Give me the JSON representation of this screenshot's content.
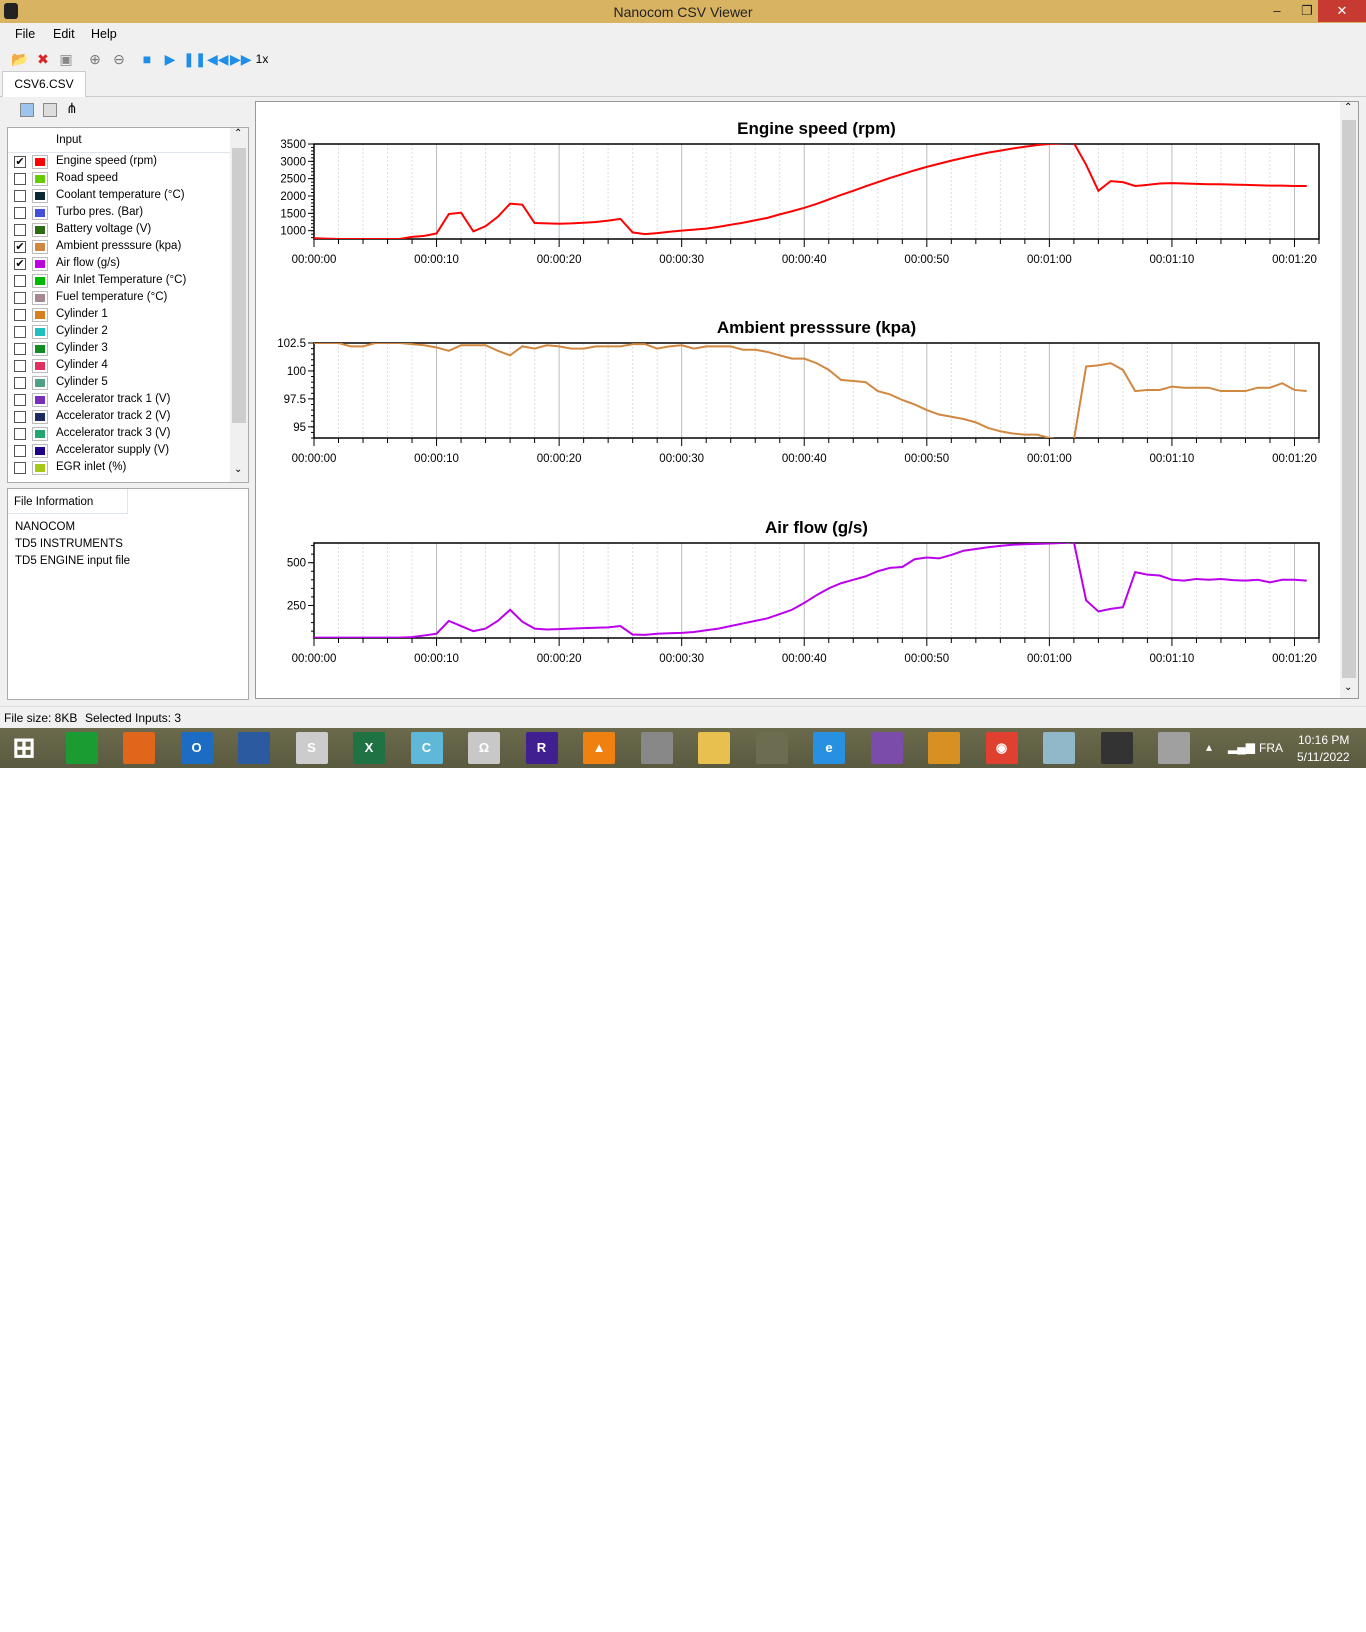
{
  "window": {
    "title": "Nanocom CSV Viewer",
    "minimize": "–",
    "maximize": "❐",
    "close": "✕"
  },
  "menu": [
    "File",
    "Edit",
    "Help"
  ],
  "toolbar": {
    "icons": [
      "open-folder-icon",
      "close-file-icon",
      "close-all-icon",
      "zoom-in-icon",
      "zoom-out-icon",
      "stop-icon",
      "play-icon",
      "pause-icon",
      "rewind-icon",
      "fast-forward-icon"
    ],
    "speed": "1x"
  },
  "tab": "CSV6.CSV",
  "inputs": {
    "header": "Input",
    "items": [
      {
        "label": "Engine speed (rpm)",
        "color": "#ff0000",
        "checked": true
      },
      {
        "label": "Road speed",
        "color": "#66cc00",
        "checked": false
      },
      {
        "label": "Coolant temperature (°C)",
        "color": "#0a2a33",
        "checked": false
      },
      {
        "label": "Turbo pres. (Bar)",
        "color": "#4050d8",
        "checked": false
      },
      {
        "label": "Battery voltage (V)",
        "color": "#2c6a14",
        "checked": false
      },
      {
        "label": "Ambient presssure (kpa)",
        "color": "#d08840",
        "checked": true
      },
      {
        "label": "Air flow (g/s)",
        "color": "#bb00dd",
        "checked": true
      },
      {
        "label": "Air Inlet Temperature (°C)",
        "color": "#00bb00",
        "checked": false
      },
      {
        "label": "Fuel temperature (°C)",
        "color": "#a88890",
        "checked": false
      },
      {
        "label": "Cylinder 1",
        "color": "#d88020",
        "checked": false
      },
      {
        "label": "Cylinder 2",
        "color": "#20c0c0",
        "checked": false
      },
      {
        "label": "Cylinder 3",
        "color": "#108c20",
        "checked": false
      },
      {
        "label": "Cylinder 4",
        "color": "#e03060",
        "checked": false
      },
      {
        "label": "Cylinder 5",
        "color": "#50a088",
        "checked": false
      },
      {
        "label": "Accelerator track 1 (V)",
        "color": "#7830b8",
        "checked": false
      },
      {
        "label": "Accelerator track 2 (V)",
        "color": "#1c2c60",
        "checked": false
      },
      {
        "label": "Accelerator track 3 (V)",
        "color": "#20a870",
        "checked": false
      },
      {
        "label": "Accelerator supply (V)",
        "color": "#200088",
        "checked": false
      },
      {
        "label": "EGR inlet (%)",
        "color": "#a8c818",
        "checked": false
      }
    ]
  },
  "file_info": {
    "header": "File Information",
    "lines": [
      "NANOCOM",
      "TD5 INSTRUMENTS",
      "TD5 ENGINE input file"
    ]
  },
  "status": {
    "file_size": "File size: 8KB",
    "selected": "Selected Inputs: 3"
  },
  "taskbar": {
    "apps": [
      "windows-start",
      "store",
      "firefox",
      "outlook",
      "lenovo",
      "steps",
      "excel",
      "ccleaner",
      "omega",
      "rew",
      "vlc",
      "photo",
      "file-explorer",
      "compass",
      "internet-explorer",
      "tor",
      "app-orange",
      "chrome",
      "notepad",
      "nanocom",
      "paint"
    ],
    "language": "FRA",
    "time": "10:16 PM",
    "date": "5/11/2022"
  },
  "chart_data": [
    {
      "type": "line",
      "title": "Engine speed (rpm)",
      "color": "#ff0000",
      "x_unit": "seconds",
      "xlim": [
        0,
        82
      ],
      "xticks": [
        "00:00:00",
        "00:00:10",
        "00:00:20",
        "00:00:30",
        "00:00:40",
        "00:00:50",
        "00:01:00",
        "00:01:10",
        "00:01:20"
      ],
      "ylim": [
        760,
        3500
      ],
      "yticks": [
        1000,
        1500,
        2000,
        2500,
        3000,
        3500
      ],
      "values": [
        780,
        770,
        760,
        760,
        760,
        760,
        760,
        760,
        820,
        850,
        920,
        1480,
        1520,
        980,
        1130,
        1400,
        1780,
        1750,
        1220,
        1210,
        1200,
        1210,
        1230,
        1250,
        1290,
        1340,
        950,
        900,
        930,
        970,
        1000,
        1030,
        1060,
        1110,
        1170,
        1230,
        1300,
        1370,
        1470,
        1560,
        1660,
        1770,
        1900,
        2030,
        2150,
        2280,
        2400,
        2520,
        2630,
        2740,
        2840,
        2930,
        3020,
        3100,
        3180,
        3250,
        3310,
        3370,
        3420,
        3470,
        3500,
        3520,
        3530,
        2900,
        2150,
        2430,
        2400,
        2290,
        2320,
        2360,
        2370,
        2360,
        2350,
        2340,
        2340,
        2330,
        2320,
        2310,
        2300,
        2300,
        2290,
        2290
      ]
    },
    {
      "type": "line",
      "title": "Ambient presssure (kpa)",
      "color": "#d08840",
      "x_unit": "seconds",
      "xlim": [
        0,
        82
      ],
      "xticks": [
        "00:00:00",
        "00:00:10",
        "00:00:20",
        "00:00:30",
        "00:00:40",
        "00:00:50",
        "00:01:00",
        "00:01:10",
        "00:01:20"
      ],
      "ylim": [
        94,
        102.5
      ],
      "yticks": [
        95,
        97.5,
        100,
        102.5
      ],
      "values": [
        102.5,
        102.5,
        102.5,
        102.2,
        102.2,
        102.5,
        102.5,
        102.5,
        102.4,
        102.3,
        102.1,
        101.8,
        102.3,
        102.3,
        102.3,
        101.8,
        101.4,
        102.2,
        102.0,
        102.3,
        102.2,
        102.0,
        102.0,
        102.2,
        102.2,
        102.2,
        102.4,
        102.4,
        102.0,
        102.2,
        102.3,
        102.0,
        102.2,
        102.2,
        102.2,
        101.9,
        101.9,
        101.7,
        101.4,
        101.1,
        101.1,
        100.7,
        100.1,
        99.2,
        99.1,
        99.0,
        98.2,
        97.9,
        97.4,
        97.0,
        96.5,
        96.1,
        95.9,
        95.7,
        95.4,
        94.9,
        94.6,
        94.4,
        94.3,
        94.3,
        94.0,
        93.8,
        93.8,
        100.4,
        100.5,
        100.7,
        100.1,
        98.2,
        98.3,
        98.3,
        98.6,
        98.5,
        98.5,
        98.5,
        98.2,
        98.2,
        98.2,
        98.5,
        98.5,
        98.9,
        98.3,
        98.2
      ]
    },
    {
      "type": "line",
      "title": "Air flow (g/s)",
      "color": "#bb00ee",
      "x_unit": "seconds",
      "xlim": [
        0,
        82
      ],
      "xticks": [
        "00:00:00",
        "00:00:10",
        "00:00:20",
        "00:00:30",
        "00:00:40",
        "00:00:50",
        "00:01:00",
        "00:01:10",
        "00:01:20"
      ],
      "ylim": [
        60,
        615
      ],
      "yticks": [
        250,
        500
      ],
      "values": [
        62,
        62,
        62,
        62,
        62,
        62,
        62,
        62,
        65,
        75,
        85,
        160,
        130,
        100,
        115,
        160,
        225,
        155,
        115,
        110,
        112,
        115,
        118,
        120,
        122,
        130,
        80,
        78,
        85,
        88,
        90,
        95,
        105,
        115,
        130,
        145,
        160,
        175,
        200,
        225,
        265,
        310,
        350,
        380,
        400,
        420,
        450,
        470,
        475,
        520,
        530,
        525,
        545,
        570,
        580,
        590,
        598,
        605,
        608,
        610,
        612,
        615,
        620,
        280,
        215,
        230,
        240,
        445,
        430,
        425,
        400,
        395,
        405,
        400,
        405,
        398,
        395,
        400,
        385,
        400,
        400,
        395
      ]
    }
  ]
}
